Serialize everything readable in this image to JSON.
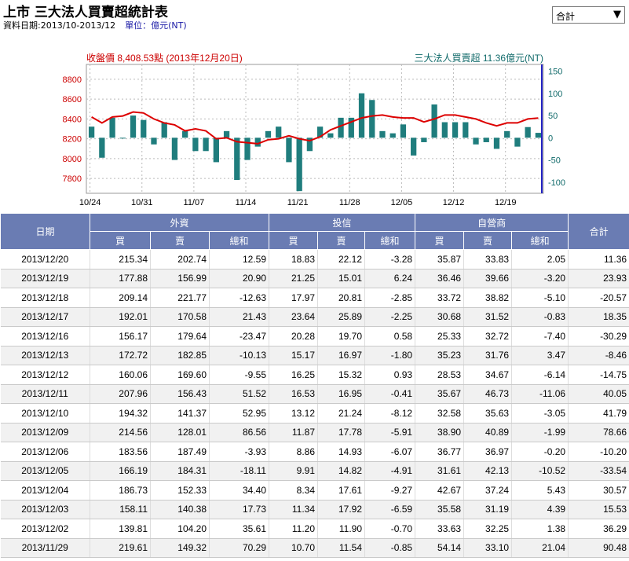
{
  "page": {
    "title": "上市 三大法人買賣超統計表",
    "date_range": "資料日期:2013/10-2013/12",
    "unit": "單位：億元(NT)",
    "select_value": "合計"
  },
  "chart_data": {
    "type": "bar+line",
    "left_title": "收盤價 8,408.53點 (2013年12月20日)",
    "right_title": "三大法人買賣超 11.36億元(NT)",
    "y_left": {
      "ticks": [
        7800,
        8000,
        8200,
        8400,
        8600,
        8800
      ],
      "range": [
        7650,
        8950
      ]
    },
    "y_right": {
      "ticks": [
        -100,
        -50,
        0,
        50,
        100,
        150
      ],
      "range": [
        -125,
        165
      ]
    },
    "x_labels": [
      "10/24",
      "10/31",
      "11/07",
      "11/14",
      "11/21",
      "11/28",
      "12/05",
      "12/12",
      "12/19"
    ],
    "bar_series": {
      "name": "三大法人買賣超",
      "values": [
        25,
        -45,
        45,
        0,
        50,
        40,
        -15,
        35,
        -50,
        15,
        -30,
        -30,
        -55,
        15,
        -95,
        -50,
        -20,
        15,
        25,
        -55,
        -120,
        -30,
        25,
        10,
        45,
        45,
        100,
        85,
        15,
        10,
        30,
        -40,
        -10,
        75,
        35,
        35,
        35,
        -15,
        -10,
        -25,
        15,
        -20,
        24,
        11
      ],
      "color": "#1f7d7d"
    },
    "line_series": {
      "name": "收盤價",
      "values": [
        8420,
        8360,
        8420,
        8430,
        8470,
        8460,
        8400,
        8360,
        8340,
        8280,
        8300,
        8280,
        8200,
        8210,
        8170,
        8160,
        8150,
        8190,
        8200,
        8230,
        8200,
        8180,
        8220,
        8290,
        8330,
        8370,
        8410,
        8430,
        8440,
        8420,
        8410,
        8410,
        8370,
        8400,
        8440,
        8440,
        8420,
        8400,
        8360,
        8330,
        8360,
        8360,
        8400,
        8409
      ],
      "color": "#dd0000"
    }
  },
  "table": {
    "header_row1": [
      "日期",
      "外資",
      "投信",
      "自營商",
      "合計"
    ],
    "header_row2": [
      "買",
      "賣",
      "總和",
      "買",
      "賣",
      "總和",
      "買",
      "賣",
      "總和"
    ],
    "rows": [
      [
        "2013/12/20",
        "215.34",
        "202.74",
        "12.59",
        "18.83",
        "22.12",
        "-3.28",
        "35.87",
        "33.83",
        "2.05",
        "11.36"
      ],
      [
        "2013/12/19",
        "177.88",
        "156.99",
        "20.90",
        "21.25",
        "15.01",
        "6.24",
        "36.46",
        "39.66",
        "-3.20",
        "23.93"
      ],
      [
        "2013/12/18",
        "209.14",
        "221.77",
        "-12.63",
        "17.97",
        "20.81",
        "-2.85",
        "33.72",
        "38.82",
        "-5.10",
        "-20.57"
      ],
      [
        "2013/12/17",
        "192.01",
        "170.58",
        "21.43",
        "23.64",
        "25.89",
        "-2.25",
        "30.68",
        "31.52",
        "-0.83",
        "18.35"
      ],
      [
        "2013/12/16",
        "156.17",
        "179.64",
        "-23.47",
        "20.28",
        "19.70",
        "0.58",
        "25.33",
        "32.72",
        "-7.40",
        "-30.29"
      ],
      [
        "2013/12/13",
        "172.72",
        "182.85",
        "-10.13",
        "15.17",
        "16.97",
        "-1.80",
        "35.23",
        "31.76",
        "3.47",
        "-8.46"
      ],
      [
        "2013/12/12",
        "160.06",
        "169.60",
        "-9.55",
        "16.25",
        "15.32",
        "0.93",
        "28.53",
        "34.67",
        "-6.14",
        "-14.75"
      ],
      [
        "2013/12/11",
        "207.96",
        "156.43",
        "51.52",
        "16.53",
        "16.95",
        "-0.41",
        "35.67",
        "46.73",
        "-11.06",
        "40.05"
      ],
      [
        "2013/12/10",
        "194.32",
        "141.37",
        "52.95",
        "13.12",
        "21.24",
        "-8.12",
        "32.58",
        "35.63",
        "-3.05",
        "41.79"
      ],
      [
        "2013/12/09",
        "214.56",
        "128.01",
        "86.56",
        "11.87",
        "17.78",
        "-5.91",
        "38.90",
        "40.89",
        "-1.99",
        "78.66"
      ],
      [
        "2013/12/06",
        "183.56",
        "187.49",
        "-3.93",
        "8.86",
        "14.93",
        "-6.07",
        "36.77",
        "36.97",
        "-0.20",
        "-10.20"
      ],
      [
        "2013/12/05",
        "166.19",
        "184.31",
        "-18.11",
        "9.91",
        "14.82",
        "-4.91",
        "31.61",
        "42.13",
        "-10.52",
        "-33.54"
      ],
      [
        "2013/12/04",
        "186.73",
        "152.33",
        "34.40",
        "8.34",
        "17.61",
        "-9.27",
        "42.67",
        "37.24",
        "5.43",
        "30.57"
      ],
      [
        "2013/12/03",
        "158.11",
        "140.38",
        "17.73",
        "11.34",
        "17.92",
        "-6.59",
        "35.58",
        "31.19",
        "4.39",
        "15.53"
      ],
      [
        "2013/12/02",
        "139.81",
        "104.20",
        "35.61",
        "11.20",
        "11.90",
        "-0.70",
        "33.63",
        "32.25",
        "1.38",
        "36.29"
      ],
      [
        "2013/11/29",
        "219.61",
        "149.32",
        "70.29",
        "10.70",
        "11.54",
        "-0.85",
        "54.14",
        "33.10",
        "21.04",
        "90.48"
      ]
    ]
  }
}
